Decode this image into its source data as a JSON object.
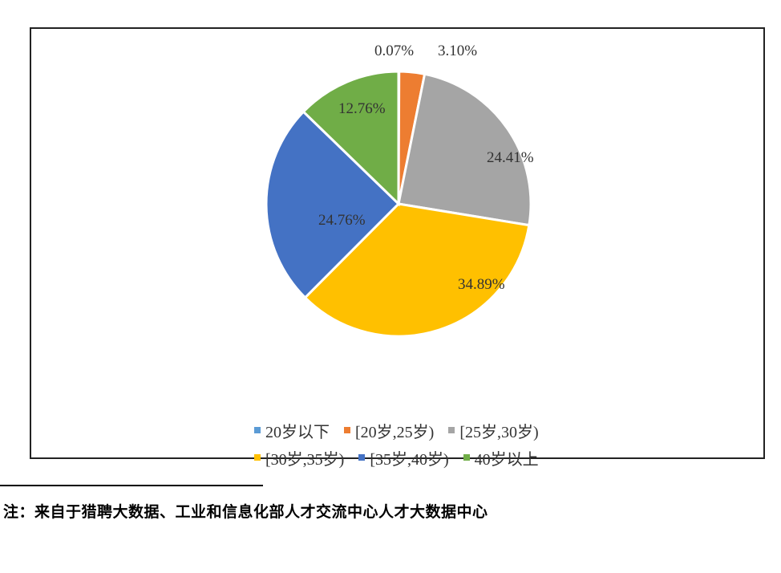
{
  "chart_data": {
    "type": "pie",
    "categories": [
      "20岁以下",
      "[20岁,25岁)",
      "[25岁,30岁)",
      "[30岁,35岁)",
      "[35岁,40岁)",
      "40岁以上"
    ],
    "values": [
      0.07,
      3.1,
      24.41,
      34.89,
      24.76,
      12.76
    ],
    "labels": [
      "0.07%",
      "3.10%",
      "24.41%",
      "34.89%",
      "24.76%",
      "12.76%"
    ],
    "colors": [
      "#5b9bd5",
      "#ed7d31",
      "#a5a5a5",
      "#ffc000",
      "#4472c4",
      "#70ad47"
    ],
    "legend_position": "bottom"
  },
  "legend": {
    "row1": [
      "20岁以下",
      "[20岁,25岁)",
      "[25岁,30岁)"
    ],
    "row2": [
      "[30岁,35岁)",
      "[35岁,40岁)",
      "40岁以上"
    ]
  },
  "note": "注：来自于猎聘大数据、工业和信息化部人才交流中心人才大数据中心"
}
